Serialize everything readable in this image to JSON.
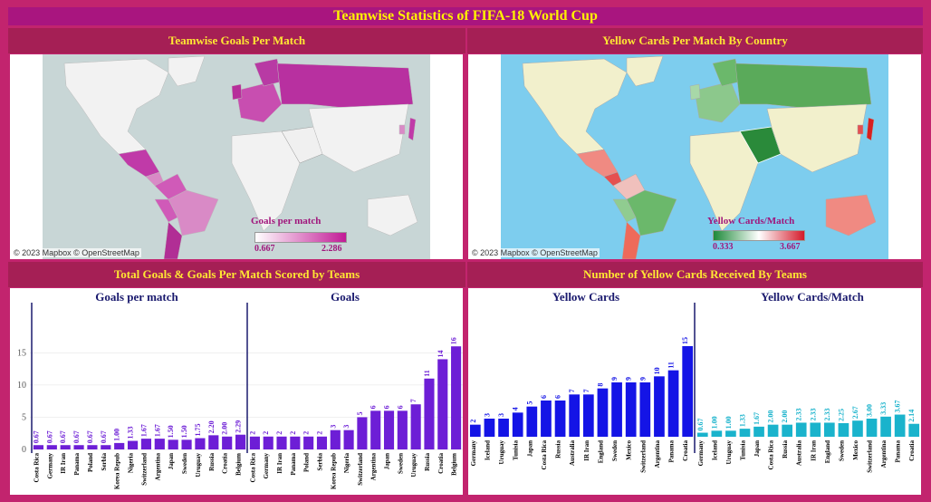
{
  "header": {
    "title": "Teamwise Statistics of FIFA-18 World Cup"
  },
  "panels": {
    "goals_map": {
      "title": "Teamwise Goals Per Match",
      "attribution": "© 2023 Mapbox © OpenStreetMap",
      "legend": {
        "title": "Goals per match",
        "min": "0.667",
        "max": "2.286",
        "colors": [
          "#ffffff",
          "#c21b96"
        ]
      }
    },
    "cards_map": {
      "title": "Yellow Cards Per Match By Country",
      "attribution": "© 2023 Mapbox © OpenStreetMap",
      "legend": {
        "title": "Yellow Cards/Match",
        "min": "0.333",
        "max": "3.667",
        "colors": [
          "#1e8a3a",
          "#ffffff",
          "#d41a2a"
        ]
      }
    },
    "goals_chart": {
      "title": "Total Goals & Goals Per Match Scored by Teams"
    },
    "cards_chart": {
      "title": "Number of Yellow Cards Received By Teams"
    }
  },
  "chart_data": [
    {
      "type": "bar",
      "title": "Goals per match",
      "categories": [
        "Costa Rica",
        "Germany",
        "IR Iran",
        "Panama",
        "Poland",
        "Serbia",
        "Korea Repub",
        "Nigeria",
        "Switzerland",
        "Argentina",
        "Japan",
        "Sweden",
        "Uruguay",
        "Russia",
        "Croatia",
        "Belgium"
      ],
      "values": [
        0.67,
        0.67,
        0.67,
        0.67,
        0.67,
        0.67,
        1.0,
        1.33,
        1.67,
        1.67,
        1.5,
        1.5,
        1.75,
        2.2,
        2.0,
        2.29
      ],
      "ylim": [
        0,
        18
      ],
      "yticks": [
        "0",
        "5",
        "10",
        "15"
      ],
      "color": "#6d1ed6"
    },
    {
      "type": "bar",
      "title": "Goals",
      "categories": [
        "Costa Rica",
        "Germany",
        "IR Iran",
        "Panama",
        "Poland",
        "Serbia",
        "Korea Repub",
        "Nigeria",
        "Switzerland",
        "Argentina",
        "Japan",
        "Sweden",
        "Uruguay",
        "Russia",
        "Croatia",
        "Belgium"
      ],
      "values": [
        2,
        2,
        2,
        2,
        2,
        2,
        3,
        3,
        5,
        6,
        6,
        6,
        7,
        11,
        14,
        16
      ],
      "ylim": [
        0,
        18
      ],
      "color": "#6d1ed6"
    },
    {
      "type": "bar",
      "title": "Yellow Cards",
      "categories": [
        "Germany",
        "Iceland",
        "Uruguay",
        "Tunisia",
        "Japan",
        "Costa Rica",
        "Russia",
        "Australia",
        "IR Iran",
        "England",
        "Sweden",
        "Mexico",
        "Switzerland",
        "Argentina",
        "Panama",
        "Croatia"
      ],
      "values": [
        2,
        3,
        3,
        4,
        5,
        6,
        6,
        7,
        7,
        8,
        9,
        9,
        9,
        10,
        11,
        15
      ],
      "ylim": [
        0,
        18
      ],
      "color": "#1414e6"
    },
    {
      "type": "bar",
      "title": "Yellow Cards/Match",
      "categories": [
        "Germany",
        "Iceland",
        "Uruguay",
        "Tunisia",
        "Japan",
        "Costa Rica",
        "Russia",
        "Australia",
        "IR Iran",
        "England",
        "Sweden",
        "Mexico",
        "Switzerland",
        "Argentina",
        "Panama",
        "Croatia"
      ],
      "values": [
        0.67,
        1.0,
        1.0,
        1.33,
        1.67,
        2.0,
        2.0,
        2.33,
        2.33,
        2.33,
        2.25,
        2.67,
        3.0,
        3.33,
        3.67,
        2.14
      ],
      "ylim": [
        0,
        18
      ],
      "color": "#1ab3cc"
    }
  ]
}
